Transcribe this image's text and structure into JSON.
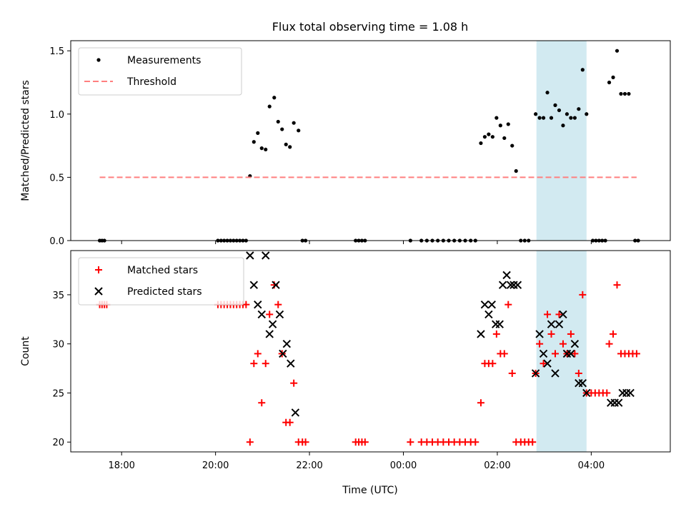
{
  "title": "Flux total observing time = 1.08 h",
  "xlabel": "Time (UTC)",
  "x_tick_labels": [
    "18:00",
    "20:00",
    "22:00",
    "00:00",
    "02:00",
    "04:00"
  ],
  "colors": {
    "measurements": "#000000",
    "threshold": "#ff7f7f",
    "matched": "#ff0000",
    "predicted": "#000000",
    "highlight": "#add8e6"
  },
  "chart_data": [
    {
      "type": "scatter",
      "panel": "top",
      "ylabel": "Matched/Predicted stars",
      "ylim": [
        0,
        1.58
      ],
      "yticks": [
        0.0,
        0.5,
        1.0,
        1.5
      ],
      "ytick_labels": [
        "0.0",
        "0.5",
        "1.0",
        "1.5"
      ],
      "xlim": [
        "17:15",
        "06:00"
      ],
      "legend_position": "top-left",
      "highlight_span": [
        "02:50",
        "03:54"
      ],
      "series": [
        {
          "name": "Measurements",
          "marker": "dot",
          "points": [
            [
              "17:32",
              0
            ],
            [
              "17:35",
              0
            ],
            [
              "17:38",
              0
            ],
            [
              "20:03",
              0
            ],
            [
              "20:07",
              0
            ],
            [
              "20:11",
              0
            ],
            [
              "20:15",
              0
            ],
            [
              "20:19",
              0
            ],
            [
              "20:23",
              0
            ],
            [
              "20:27",
              0
            ],
            [
              "20:31",
              0
            ],
            [
              "20:35",
              0
            ],
            [
              "20:39",
              0
            ],
            [
              "20:44",
              0.51
            ],
            [
              "20:49",
              0.78
            ],
            [
              "20:54",
              0.85
            ],
            [
              "20:59",
              0.73
            ],
            [
              "21:04",
              0.72
            ],
            [
              "21:09",
              1.06
            ],
            [
              "21:15",
              1.13
            ],
            [
              "21:20",
              0.94
            ],
            [
              "21:25",
              0.88
            ],
            [
              "21:30",
              0.76
            ],
            [
              "21:35",
              0.74
            ],
            [
              "21:40",
              0.93
            ],
            [
              "21:46",
              0.87
            ],
            [
              "21:51",
              0
            ],
            [
              "21:55",
              0
            ],
            [
              "22:59",
              0
            ],
            [
              "23:03",
              0
            ],
            [
              "23:07",
              0
            ],
            [
              "23:11",
              0
            ],
            [
              "00:09",
              0
            ],
            [
              "00:23",
              0
            ],
            [
              "00:30",
              0
            ],
            [
              "00:37",
              0
            ],
            [
              "00:44",
              0
            ],
            [
              "00:51",
              0
            ],
            [
              "00:58",
              0
            ],
            [
              "01:05",
              0
            ],
            [
              "01:12",
              0
            ],
            [
              "01:19",
              0
            ],
            [
              "01:26",
              0
            ],
            [
              "01:32",
              0
            ],
            [
              "01:39",
              0.77
            ],
            [
              "01:44",
              0.82
            ],
            [
              "01:49",
              0.84
            ],
            [
              "01:54",
              0.82
            ],
            [
              "01:59",
              0.97
            ],
            [
              "02:04",
              0.91
            ],
            [
              "02:09",
              0.81
            ],
            [
              "02:14",
              0.92
            ],
            [
              "02:19",
              0.75
            ],
            [
              "02:24",
              0.55
            ],
            [
              "02:30",
              0
            ],
            [
              "02:35",
              0
            ],
            [
              "02:40",
              0
            ],
            [
              "02:49",
              1.0
            ],
            [
              "02:54",
              0.97
            ],
            [
              "02:59",
              0.97
            ],
            [
              "03:04",
              1.17
            ],
            [
              "03:09",
              0.97
            ],
            [
              "03:14",
              1.07
            ],
            [
              "03:19",
              1.03
            ],
            [
              "03:24",
              0.91
            ],
            [
              "03:29",
              1.0
            ],
            [
              "03:34",
              0.97
            ],
            [
              "03:39",
              0.97
            ],
            [
              "03:44",
              1.04
            ],
            [
              "03:49",
              1.35
            ],
            [
              "03:54",
              1.0
            ],
            [
              "04:02",
              0
            ],
            [
              "04:06",
              0
            ],
            [
              "04:10",
              0
            ],
            [
              "04:14",
              0
            ],
            [
              "04:18",
              0
            ],
            [
              "04:23",
              1.25
            ],
            [
              "04:28",
              1.29
            ],
            [
              "04:33",
              1.5
            ],
            [
              "04:38",
              1.16
            ],
            [
              "04:43",
              1.16
            ],
            [
              "04:48",
              1.16
            ],
            [
              "04:56",
              0
            ],
            [
              "05:00",
              0
            ]
          ]
        },
        {
          "name": "Threshold",
          "marker": "dashed-line",
          "points": [
            [
              "17:32",
              0.5
            ],
            [
              "04:58",
              0.5
            ]
          ]
        }
      ]
    },
    {
      "type": "scatter",
      "panel": "bottom",
      "ylabel": "Count",
      "ylim": [
        19,
        39.5
      ],
      "yticks": [
        20,
        25,
        30,
        35
      ],
      "ytick_labels": [
        "20",
        "25",
        "30",
        "35"
      ],
      "xlim": [
        "17:15",
        "06:00"
      ],
      "legend_position": "top-left",
      "highlight_span": [
        "02:50",
        "03:54"
      ],
      "series": [
        {
          "name": "Matched stars",
          "marker": "plus",
          "points": [
            [
              "17:32",
              34
            ],
            [
              "17:35",
              34
            ],
            [
              "17:38",
              34
            ],
            [
              "17:41",
              34
            ],
            [
              "20:03",
              34
            ],
            [
              "20:07",
              34
            ],
            [
              "20:11",
              34
            ],
            [
              "20:15",
              34
            ],
            [
              "20:19",
              34
            ],
            [
              "20:23",
              34
            ],
            [
              "20:27",
              34
            ],
            [
              "20:31",
              34
            ],
            [
              "20:35",
              34
            ],
            [
              "20:39",
              34
            ],
            [
              "20:44",
              20
            ],
            [
              "20:49",
              28
            ],
            [
              "20:54",
              29
            ],
            [
              "20:59",
              24
            ],
            [
              "21:04",
              28
            ],
            [
              "21:09",
              33
            ],
            [
              "21:15",
              36
            ],
            [
              "21:20",
              34
            ],
            [
              "21:25",
              29
            ],
            [
              "21:30",
              22
            ],
            [
              "21:35",
              22
            ],
            [
              "21:40",
              26
            ],
            [
              "21:46",
              20
            ],
            [
              "21:51",
              20
            ],
            [
              "21:55",
              20
            ],
            [
              "22:59",
              20
            ],
            [
              "23:03",
              20
            ],
            [
              "23:07",
              20
            ],
            [
              "23:11",
              20
            ],
            [
              "00:09",
              20
            ],
            [
              "00:23",
              20
            ],
            [
              "00:30",
              20
            ],
            [
              "00:37",
              20
            ],
            [
              "00:44",
              20
            ],
            [
              "00:51",
              20
            ],
            [
              "00:58",
              20
            ],
            [
              "01:05",
              20
            ],
            [
              "01:12",
              20
            ],
            [
              "01:19",
              20
            ],
            [
              "01:26",
              20
            ],
            [
              "01:32",
              20
            ],
            [
              "01:39",
              24
            ],
            [
              "01:44",
              28
            ],
            [
              "01:49",
              28
            ],
            [
              "01:54",
              28
            ],
            [
              "01:59",
              31
            ],
            [
              "02:04",
              29
            ],
            [
              "02:09",
              29
            ],
            [
              "02:14",
              34
            ],
            [
              "02:19",
              27
            ],
            [
              "02:24",
              20
            ],
            [
              "02:30",
              20
            ],
            [
              "02:35",
              20
            ],
            [
              "02:40",
              20
            ],
            [
              "02:45",
              20
            ],
            [
              "02:49",
              27
            ],
            [
              "02:54",
              30
            ],
            [
              "02:59",
              28
            ],
            [
              "03:04",
              33
            ],
            [
              "03:09",
              31
            ],
            [
              "03:14",
              29
            ],
            [
              "03:19",
              33
            ],
            [
              "03:24",
              30
            ],
            [
              "03:29",
              29
            ],
            [
              "03:34",
              31
            ],
            [
              "03:39",
              29
            ],
            [
              "03:44",
              27
            ],
            [
              "03:49",
              35
            ],
            [
              "03:54",
              25
            ],
            [
              "04:00",
              25
            ],
            [
              "04:05",
              25
            ],
            [
              "04:10",
              25
            ],
            [
              "04:15",
              25
            ],
            [
              "04:20",
              25
            ],
            [
              "04:23",
              30
            ],
            [
              "04:28",
              31
            ],
            [
              "04:33",
              36
            ],
            [
              "04:38",
              29
            ],
            [
              "04:43",
              29
            ],
            [
              "04:48",
              29
            ],
            [
              "04:53",
              29
            ],
            [
              "04:58",
              29
            ]
          ]
        },
        {
          "name": "Predicted stars",
          "marker": "x",
          "points": [
            [
              "20:44",
              39
            ],
            [
              "20:49",
              36
            ],
            [
              "20:54",
              34
            ],
            [
              "20:59",
              33
            ],
            [
              "21:04",
              39
            ],
            [
              "21:09",
              31
            ],
            [
              "21:13",
              32
            ],
            [
              "21:17",
              36
            ],
            [
              "21:22",
              33
            ],
            [
              "21:26",
              29
            ],
            [
              "21:31",
              30
            ],
            [
              "21:36",
              28
            ],
            [
              "21:42",
              23
            ],
            [
              "01:39",
              31
            ],
            [
              "01:44",
              34
            ],
            [
              "01:49",
              33
            ],
            [
              "01:53",
              34
            ],
            [
              "01:58",
              32
            ],
            [
              "02:03",
              32
            ],
            [
              "02:07",
              36
            ],
            [
              "02:12",
              37
            ],
            [
              "02:17",
              36
            ],
            [
              "02:21",
              36
            ],
            [
              "02:26",
              36
            ],
            [
              "02:49",
              27
            ],
            [
              "02:54",
              31
            ],
            [
              "02:59",
              29
            ],
            [
              "03:04",
              28
            ],
            [
              "03:09",
              32
            ],
            [
              "03:14",
              27
            ],
            [
              "03:19",
              32
            ],
            [
              "03:24",
              33
            ],
            [
              "03:29",
              29
            ],
            [
              "03:34",
              29
            ],
            [
              "03:39",
              30
            ],
            [
              "03:44",
              26
            ],
            [
              "03:49",
              26
            ],
            [
              "03:54",
              25
            ],
            [
              "04:25",
              24
            ],
            [
              "04:30",
              24
            ],
            [
              "04:35",
              24
            ],
            [
              "04:40",
              25
            ],
            [
              "04:45",
              25
            ],
            [
              "04:50",
              25
            ]
          ]
        }
      ]
    }
  ]
}
